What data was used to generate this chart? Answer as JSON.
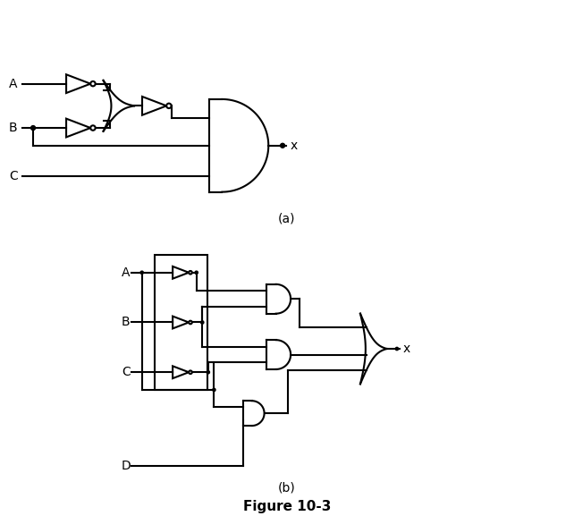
{
  "bg_color": "#ffffff",
  "lc": "#000000",
  "lw": 1.5,
  "dot_r": 0.05,
  "bub_r": 0.055,
  "lfs": 10,
  "fig_caption": "Figure 10-3",
  "cap_a": "(a)",
  "cap_b": "(b)"
}
